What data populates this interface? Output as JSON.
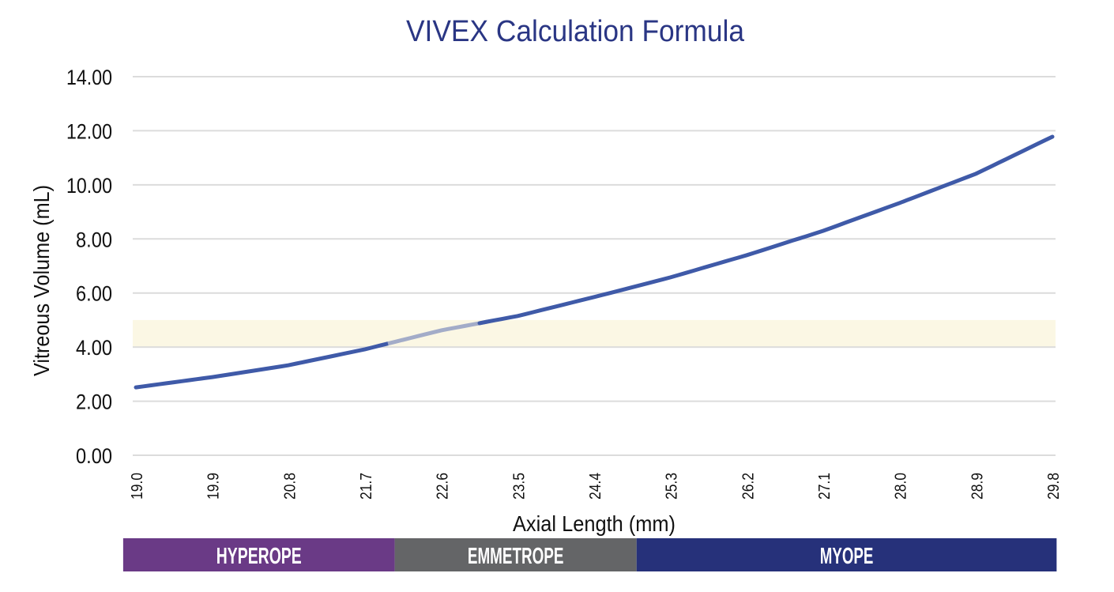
{
  "chart_data": {
    "type": "line",
    "title": "VIVEX Calculation Formula",
    "xlabel": "Axial Length (mm)",
    "ylabel": "Vitreous Volume (mL)",
    "ylim": [
      0,
      14
    ],
    "xlim": [
      19.0,
      29.8
    ],
    "grid": true,
    "yticks": [
      "0.00",
      "2.00",
      "4.00",
      "6.00",
      "8.00",
      "10.00",
      "12.00",
      "14.00"
    ],
    "xticks": [
      "19.0",
      "19.9",
      "20.8",
      "21.7",
      "22.6",
      "23.5",
      "24.4",
      "25.3",
      "26.2",
      "27.1",
      "28.0",
      "28.9",
      "29.8"
    ],
    "series": [
      {
        "x": [
          19.0,
          19.9,
          20.8,
          21.7,
          22.6,
          23.5,
          24.4,
          25.3,
          26.2,
          27.1,
          28.0,
          28.9,
          29.8
        ],
        "y": [
          2.51,
          2.89,
          3.33,
          3.92,
          4.62,
          5.15,
          5.85,
          6.58,
          7.4,
          8.3,
          9.33,
          10.41,
          11.78
        ],
        "color": "#3f5aa8",
        "highlight_range_x": [
          22.0,
          23.1
        ],
        "highlight_color": "#a3acc8"
      }
    ],
    "shaded_band": {
      "y": [
        4.0,
        5.0
      ],
      "color": "#fbf7e4"
    },
    "categories_bar": [
      {
        "label": "HYPEROPE",
        "x_range": [
          18.85,
          22.05
        ],
        "color": "#6a3a86"
      },
      {
        "label": "EMMETROPE",
        "x_range": [
          22.05,
          24.9
        ],
        "color": "#646567"
      },
      {
        "label": "MYOPE",
        "x_range": [
          24.9,
          29.85
        ],
        "color": "#26317a"
      }
    ],
    "title_color": "#2a3684"
  }
}
